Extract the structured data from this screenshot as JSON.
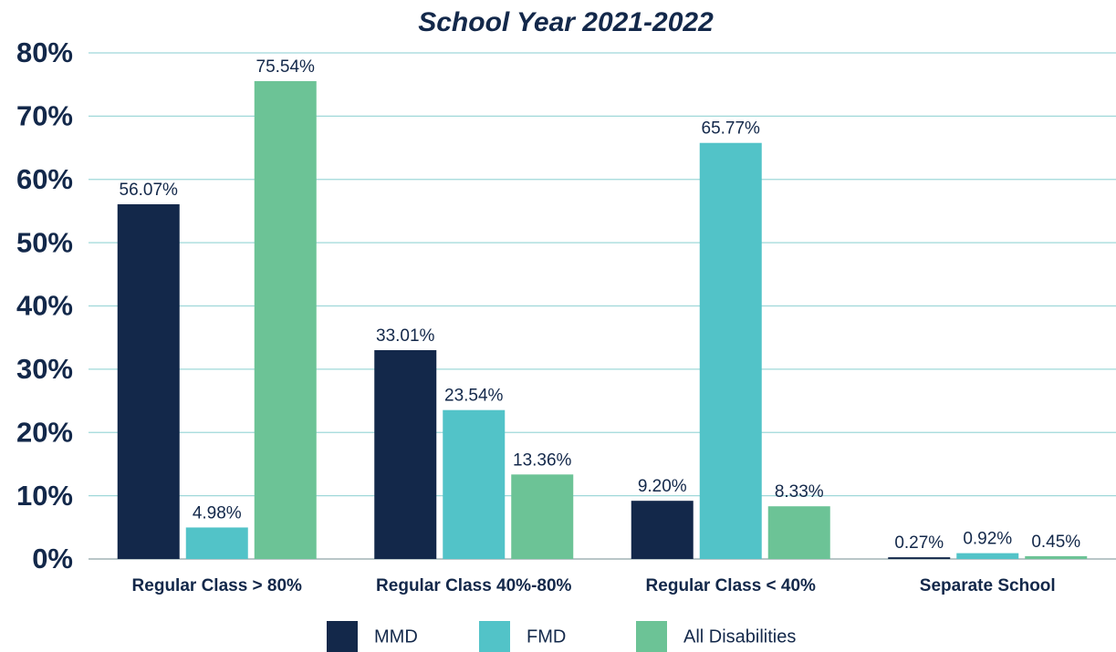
{
  "chart_data": {
    "type": "bar",
    "title": "School Year 2021-2022",
    "categories": [
      "Regular Class > 80%",
      "Regular Class 40%-80%",
      "Regular Class < 40%",
      "Separate School"
    ],
    "series": [
      {
        "name": "MMD",
        "color": "#13284a",
        "values": [
          56.07,
          33.01,
          9.2,
          0.27
        ],
        "value_labels": [
          "56.07%",
          "33.01%",
          "9.20%",
          "0.27%"
        ]
      },
      {
        "name": "FMD",
        "color": "#52c3c8",
        "values": [
          4.98,
          23.54,
          65.77,
          0.92
        ],
        "value_labels": [
          "4.98%",
          "23.54%",
          "65.77%",
          "0.92%"
        ]
      },
      {
        "name": "All Disabilities",
        "color": "#6cc396",
        "values": [
          75.54,
          13.36,
          8.33,
          0.45
        ],
        "value_labels": [
          "75.54%",
          "13.36%",
          "8.33%",
          "0.45%"
        ]
      }
    ],
    "ylim": [
      0,
      80
    ],
    "yticks": [
      {
        "value": 0,
        "label": "0%"
      },
      {
        "value": 10,
        "label": "10%"
      },
      {
        "value": 20,
        "label": "20%"
      },
      {
        "value": 30,
        "label": "30%"
      },
      {
        "value": 40,
        "label": "40%"
      },
      {
        "value": 50,
        "label": "50%"
      },
      {
        "value": 60,
        "label": "60%"
      },
      {
        "value": 70,
        "label": "70%"
      },
      {
        "value": 80,
        "label": "80%"
      }
    ],
    "grid": true,
    "legend": "bottom"
  }
}
